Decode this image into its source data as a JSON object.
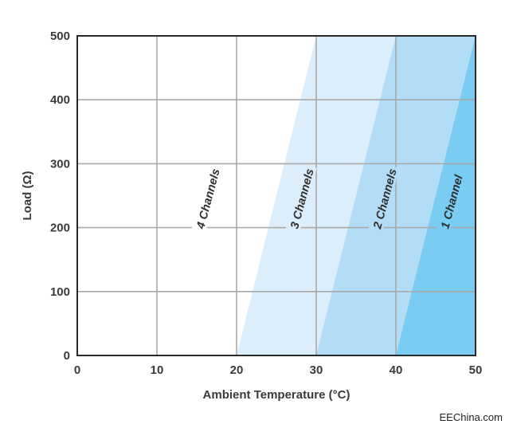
{
  "chart_data": {
    "type": "area",
    "xlabel": "Ambient Temperature (°C)",
    "ylabel": "Load (Ω)",
    "xlim": [
      0,
      50
    ],
    "ylim": [
      0,
      500
    ],
    "xticks": [
      0,
      10,
      20,
      30,
      40,
      50
    ],
    "yticks": [
      0,
      100,
      200,
      300,
      400,
      500
    ],
    "grid": true,
    "regions": [
      {
        "name": "4 Channels",
        "boundary_x_at_0": null,
        "boundary_x_at_500": null,
        "color": "#ffffff"
      },
      {
        "name": "3 Channels",
        "boundary_x_at_0": 20,
        "boundary_x_at_500": 30,
        "color": "#dcedfb"
      },
      {
        "name": "2 Channels",
        "boundary_x_at_0": 30,
        "boundary_x_at_500": 40,
        "color": "#b3ddf7"
      },
      {
        "name": "1 Channel",
        "boundary_x_at_0": 40,
        "boundary_x_at_500": 50,
        "color": "#79cdf3"
      }
    ]
  },
  "watermark": "EEChina.com"
}
